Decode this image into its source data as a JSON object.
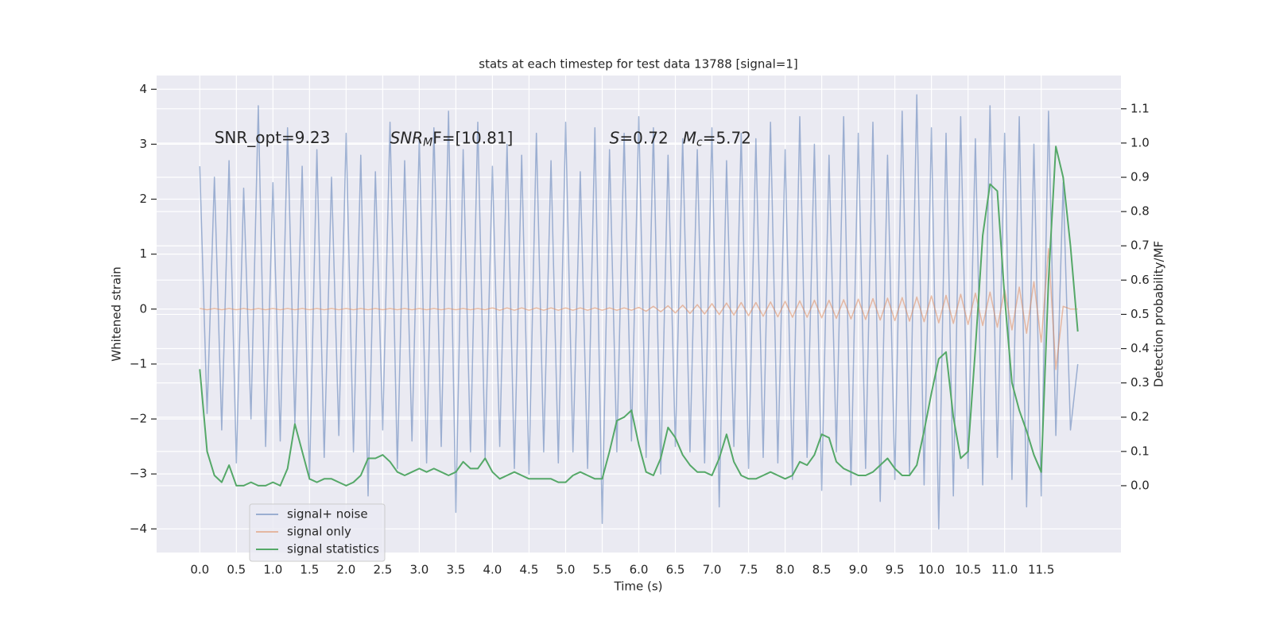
{
  "chart_data": {
    "type": "line",
    "title": "stats at each timestep for test data 13788 [signal=1]",
    "xlabel": "Time (s)",
    "ylabel": "Whitened strain",
    "y2label": "Detection probability/MF",
    "annotations": [
      {
        "text": "SNR_opt=9.23",
        "x": 0.2,
        "y": 3.1
      },
      {
        "main": "SNR",
        "sub": "M",
        "rest": "F=[10.81]",
        "x": 2.6,
        "y": 3.1
      },
      {
        "main": "S",
        "rest": "=0.72",
        "x": 5.6,
        "y": 3.1
      },
      {
        "main": "M",
        "sub": "c",
        "rest": "=5.72",
        "x": 6.6,
        "y": 3.1
      }
    ],
    "x": [
      0,
      0.1,
      0.2,
      0.3,
      0.4,
      0.5,
      0.6,
      0.7,
      0.8,
      0.9,
      1,
      1.1,
      1.2,
      1.3,
      1.4,
      1.5,
      1.6,
      1.7,
      1.8,
      1.9,
      2,
      2.1,
      2.2,
      2.3,
      2.4,
      2.5,
      2.6,
      2.7,
      2.8,
      2.9,
      3,
      3.1,
      3.2,
      3.3,
      3.4,
      3.5,
      3.6,
      3.7,
      3.8,
      3.9,
      4,
      4.1,
      4.2,
      4.3,
      4.4,
      4.5,
      4.6,
      4.7,
      4.8,
      4.9,
      5,
      5.1,
      5.2,
      5.3,
      5.4,
      5.5,
      5.6,
      5.7,
      5.8,
      5.9,
      6,
      6.1,
      6.2,
      6.3,
      6.4,
      6.5,
      6.6,
      6.7,
      6.8,
      6.9,
      7,
      7.1,
      7.2,
      7.3,
      7.4,
      7.5,
      7.6,
      7.7,
      7.8,
      7.9,
      8,
      8.1,
      8.2,
      8.3,
      8.4,
      8.5,
      8.6,
      8.7,
      8.8,
      8.9,
      9,
      9.1,
      9.2,
      9.3,
      9.4,
      9.5,
      9.6,
      9.7,
      9.8,
      9.9,
      10,
      10.1,
      10.2,
      10.3,
      10.4,
      10.5,
      10.6,
      10.7,
      10.8,
      10.9,
      11,
      11.1,
      11.2,
      11.3,
      11.4,
      11.5,
      11.6,
      11.7,
      11.8,
      11.9,
      12
    ],
    "series": [
      {
        "name": "signal+ noise",
        "color": "#4c72b0",
        "opacity": 0.5,
        "values": [
          2.6,
          -1.9,
          2.4,
          -2.2,
          2.7,
          -2.8,
          2.2,
          -2.0,
          3.7,
          -2.5,
          2.3,
          -2.4,
          3.3,
          -2.1,
          2.6,
          -3.1,
          2.9,
          -2.7,
          2.4,
          -2.3,
          3.2,
          -2.6,
          2.8,
          -3.4,
          2.5,
          -2.2,
          3.4,
          -2.9,
          2.7,
          -2.4,
          3.1,
          -2.8,
          3.3,
          -2.5,
          3.6,
          -3.7,
          2.9,
          -2.6,
          3.4,
          -2.7,
          2.6,
          -2.5,
          3.0,
          -2.9,
          2.8,
          -3.0,
          3.2,
          -2.6,
          2.7,
          -2.8,
          3.4,
          -2.6,
          2.5,
          -2.9,
          3.3,
          -3.9,
          2.9,
          -2.6,
          3.2,
          -2.4,
          3.5,
          -2.7,
          3.3,
          -3.0,
          2.8,
          -2.5,
          3.1,
          -2.6,
          2.9,
          -2.8,
          3.3,
          -3.6,
          2.7,
          -2.5,
          3.2,
          -2.9,
          3.1,
          -2.7,
          3.4,
          -2.8,
          2.9,
          -3.1,
          3.5,
          -2.7,
          3.0,
          -3.3,
          2.8,
          -2.6,
          3.5,
          -3.2,
          3.2,
          -2.9,
          3.4,
          -3.5,
          2.8,
          -3.1,
          3.6,
          -3.0,
          3.9,
          -3.2,
          3.3,
          -4.0,
          3.2,
          -3.4,
          3.5,
          -2.9,
          3.1,
          -3.2,
          3.7,
          -2.7,
          3.2,
          -3.1,
          3.5,
          -3.6,
          3.0,
          -3.4,
          3.6,
          -2.3,
          2.3,
          -2.2,
          -1.0
        ]
      },
      {
        "name": "signal only",
        "color": "#dd8452",
        "opacity": 0.5,
        "values": [
          0.01,
          -0.01,
          0.01,
          -0.01,
          0.01,
          -0.01,
          0.01,
          -0.01,
          0.01,
          -0.01,
          0.01,
          -0.01,
          0.01,
          -0.01,
          0.01,
          -0.01,
          0.01,
          -0.01,
          0.01,
          -0.01,
          0.01,
          -0.01,
          0.01,
          -0.01,
          0.01,
          -0.01,
          0.01,
          -0.01,
          0.01,
          -0.01,
          0.01,
          -0.01,
          0.01,
          -0.01,
          0.01,
          -0.01,
          0.01,
          -0.01,
          0.01,
          -0.01,
          0.02,
          -0.02,
          0.02,
          -0.02,
          0.02,
          -0.02,
          0.02,
          -0.02,
          0.02,
          -0.02,
          0.02,
          -0.02,
          0.02,
          -0.02,
          0.02,
          -0.02,
          0.02,
          -0.02,
          0.02,
          -0.02,
          0.03,
          -0.04,
          0.05,
          -0.05,
          0.06,
          -0.07,
          0.07,
          -0.08,
          0.08,
          -0.09,
          0.1,
          -0.1,
          0.11,
          -0.11,
          0.12,
          -0.12,
          0.12,
          -0.13,
          0.13,
          -0.14,
          0.14,
          -0.15,
          0.15,
          -0.15,
          0.16,
          -0.16,
          0.16,
          -0.17,
          0.17,
          -0.18,
          0.18,
          -0.19,
          0.19,
          -0.2,
          0.2,
          -0.21,
          0.21,
          -0.22,
          0.22,
          -0.23,
          0.24,
          -0.25,
          0.25,
          -0.26,
          0.27,
          -0.28,
          0.29,
          -0.3,
          0.31,
          -0.33,
          0.35,
          -0.38,
          0.4,
          -0.44,
          0.5,
          -0.6,
          1.1,
          -1.1,
          0.05,
          0.0,
          0.0
        ]
      },
      {
        "name": "signal statistics",
        "color": "#55a868",
        "opacity": 1,
        "axis": "y2",
        "values": [
          0.34,
          0.1,
          0.03,
          0.01,
          0.06,
          0.0,
          0.0,
          0.01,
          0.0,
          0.0,
          0.01,
          0.0,
          0.05,
          0.18,
          0.1,
          0.02,
          0.01,
          0.02,
          0.02,
          0.01,
          0.0,
          0.01,
          0.03,
          0.08,
          0.08,
          0.09,
          0.07,
          0.04,
          0.03,
          0.04,
          0.05,
          0.04,
          0.05,
          0.04,
          0.03,
          0.04,
          0.07,
          0.05,
          0.05,
          0.08,
          0.04,
          0.02,
          0.03,
          0.04,
          0.03,
          0.02,
          0.02,
          0.02,
          0.02,
          0.01,
          0.01,
          0.03,
          0.04,
          0.03,
          0.02,
          0.02,
          0.1,
          0.19,
          0.2,
          0.22,
          0.12,
          0.04,
          0.03,
          0.08,
          0.17,
          0.14,
          0.09,
          0.06,
          0.04,
          0.04,
          0.03,
          0.08,
          0.15,
          0.07,
          0.03,
          0.02,
          0.02,
          0.03,
          0.04,
          0.03,
          0.02,
          0.03,
          0.07,
          0.06,
          0.09,
          0.15,
          0.14,
          0.07,
          0.05,
          0.04,
          0.03,
          0.03,
          0.04,
          0.06,
          0.08,
          0.05,
          0.03,
          0.03,
          0.06,
          0.16,
          0.27,
          0.37,
          0.39,
          0.2,
          0.08,
          0.1,
          0.4,
          0.73,
          0.88,
          0.86,
          0.55,
          0.3,
          0.22,
          0.16,
          0.09,
          0.04,
          0.6,
          0.99,
          0.9,
          0.7,
          0.45
        ]
      }
    ],
    "xlim": [
      -0.59,
      12.59
    ],
    "xticks": [
      {
        "value": 0,
        "label": "0.0"
      },
      0.5,
      {
        "value": 1,
        "label": "1.0"
      },
      1.5,
      {
        "value": 2,
        "label": "2.0"
      },
      2.5,
      {
        "value": 3,
        "label": "3.0"
      },
      3.5,
      {
        "value": 4,
        "label": "4.0"
      },
      4.5,
      {
        "value": 5,
        "label": "5.0"
      },
      5.5,
      {
        "value": 6,
        "label": "6.0"
      },
      6.5,
      {
        "value": 7,
        "label": "7.0"
      },
      7.5,
      {
        "value": 8,
        "label": "8.0"
      },
      8.5,
      {
        "value": 9,
        "label": "9.0"
      },
      9.5,
      {
        "value": 10,
        "label": "10.0"
      },
      10.5,
      {
        "value": 11,
        "label": "11.0"
      },
      11.5
    ],
    "ylim": [
      -4.43,
      4.25
    ],
    "yticks": [
      {
        "value": -4,
        "label": "−4"
      },
      {
        "value": -3,
        "label": "−3"
      },
      {
        "value": -2,
        "label": "−2"
      },
      {
        "value": -1,
        "label": "−1"
      },
      0,
      1,
      2,
      3,
      4
    ],
    "y2lim": [
      -0.195,
      1.197
    ],
    "y2ticks": [
      {
        "value": 0,
        "label": "0.0"
      },
      0.1,
      0.2,
      0.3,
      0.4,
      0.5,
      0.6,
      0.7,
      0.8,
      0.9,
      {
        "value": 1,
        "label": "1.0"
      },
      1.1
    ],
    "grid": true,
    "legend": "lower left"
  }
}
